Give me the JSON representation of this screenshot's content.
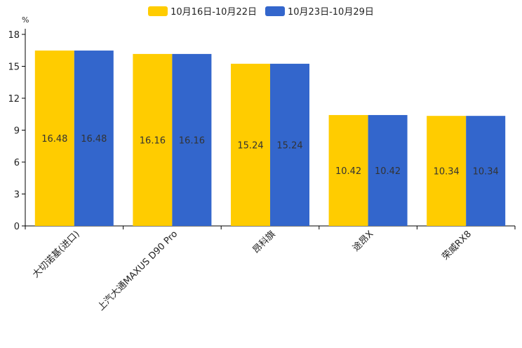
{
  "chart_data": {
    "type": "bar",
    "unit": "%",
    "categories": [
      "大切诺基(进口)",
      "上汽大通MAXUS D90 Pro",
      "昂科旗",
      "途昂X",
      "荣威RX8"
    ],
    "series": [
      {
        "name": "10月16日-10月22日",
        "color": "#FFCC00",
        "values": [
          16.48,
          16.16,
          15.24,
          10.42,
          10.34
        ]
      },
      {
        "name": "10月23日-10月29日",
        "color": "#3366CC",
        "values": [
          16.48,
          16.16,
          15.24,
          10.42,
          10.34
        ]
      }
    ],
    "ylim": [
      0,
      18
    ],
    "yticks": [
      0,
      3,
      6,
      9,
      12,
      15,
      18
    ],
    "legend_position": "top-center"
  }
}
